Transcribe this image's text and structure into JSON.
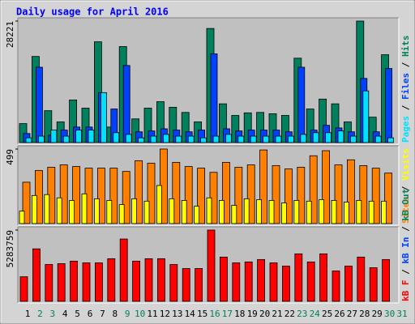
{
  "chart_data": [
    {
      "type": "bar",
      "title": "Daily usage for April 2016",
      "ylim": [
        0,
        28221
      ],
      "yticks": [
        28221
      ],
      "legend_separator": " / ",
      "series": [
        {
          "name": "Hits",
          "color": "#00805c",
          "values": [
            4400,
            20000,
            7400,
            4800,
            9900,
            8000,
            23400,
            3600,
            22300,
            5500,
            8000,
            9500,
            8200,
            7000,
            4800,
            26500,
            9000,
            6300,
            6900,
            7000,
            6700,
            6300,
            19600,
            7800,
            10100,
            9000,
            4800,
            28221,
            5900,
            20400,
            null
          ]
        },
        {
          "name": "Files",
          "color": "#0040ff",
          "values": [
            2100,
            17500,
            1700,
            2900,
            3600,
            3600,
            11600,
            7800,
            17900,
            2500,
            2700,
            3200,
            2900,
            2500,
            2900,
            20600,
            3200,
            2700,
            2900,
            2900,
            2900,
            2500,
            17500,
            2900,
            4000,
            3400,
            2500,
            14900,
            2500,
            17200,
            null
          ]
        },
        {
          "name": "Pages",
          "color": "#00e0ff",
          "values": [
            1100,
            1500,
            2900,
            1500,
            2900,
            2900,
            11600,
            2300,
            1900,
            1100,
            1500,
            1900,
            1500,
            1500,
            1100,
            1500,
            1900,
            1500,
            1500,
            1500,
            1500,
            1500,
            1900,
            2300,
            2300,
            2700,
            1500,
            12000,
            1500,
            1100,
            null
          ]
        }
      ]
    },
    {
      "type": "bar",
      "ylim": [
        0,
        499
      ],
      "yticks": [
        499
      ],
      "legend_separator": " / ",
      "series": [
        {
          "name": "Sites",
          "color": "#ff8000",
          "values": [
            277,
            355,
            377,
            393,
            382,
            371,
            371,
            371,
            349,
            421,
            404,
            499,
            410,
            382,
            371,
            343,
            410,
            377,
            393,
            493,
            388,
            366,
            377,
            454,
            488,
            393,
            427,
            388,
            371,
            338,
            null
          ]
        },
        {
          "name": "Visits",
          "color": "#ffff00",
          "values": [
            83,
            188,
            194,
            172,
            155,
            199,
            166,
            155,
            127,
            166,
            150,
            255,
            166,
            155,
            116,
            172,
            155,
            122,
            166,
            160,
            155,
            138,
            155,
            150,
            160,
            155,
            144,
            155,
            150,
            150,
            null
          ]
        }
      ]
    },
    {
      "type": "bar",
      "ylim": [
        0,
        5283759
      ],
      "yticks": [
        5283759
      ],
      "legend_separator": " / ",
      "categories": [
        "1",
        "2",
        "3",
        "4",
        "5",
        "6",
        "7",
        "8",
        "9",
        "10",
        "11",
        "12",
        "13",
        "14",
        "15",
        "16",
        "17",
        "18",
        "19",
        "20",
        "21",
        "22",
        "23",
        "24",
        "25",
        "26",
        "27",
        "28",
        "29",
        "30",
        "31"
      ],
      "category_colors": [
        "#000000",
        "#00805c",
        "#00805c",
        "#000000",
        "#000000",
        "#000000",
        "#000000",
        "#000000",
        "#00805c",
        "#00805c",
        "#000000",
        "#000000",
        "#000000",
        "#000000",
        "#000000",
        "#00805c",
        "#00805c",
        "#000000",
        "#000000",
        "#000000",
        "#000000",
        "#000000",
        "#00805c",
        "#00805c",
        "#000000",
        "#000000",
        "#000000",
        "#000000",
        "#000000",
        "#00805c",
        "#00805c"
      ],
      "series": [
        {
          "name": "kB F",
          "color": "#ff0000",
          "values": [
            1820000,
            3890000,
            2730000,
            2790000,
            2980000,
            2850000,
            2850000,
            3160000,
            4620000,
            2980000,
            3160000,
            3160000,
            2730000,
            2430000,
            2430000,
            5283759,
            3280000,
            2850000,
            2920000,
            3100000,
            2850000,
            2610000,
            3520000,
            2920000,
            3520000,
            2250000,
            2610000,
            3280000,
            2490000,
            3100000,
            null
          ]
        }
      ],
      "legend_only": [
        {
          "name": "kB In",
          "color": "#0040ff"
        },
        {
          "name": "kB Out",
          "color": "#00805c"
        }
      ]
    }
  ]
}
